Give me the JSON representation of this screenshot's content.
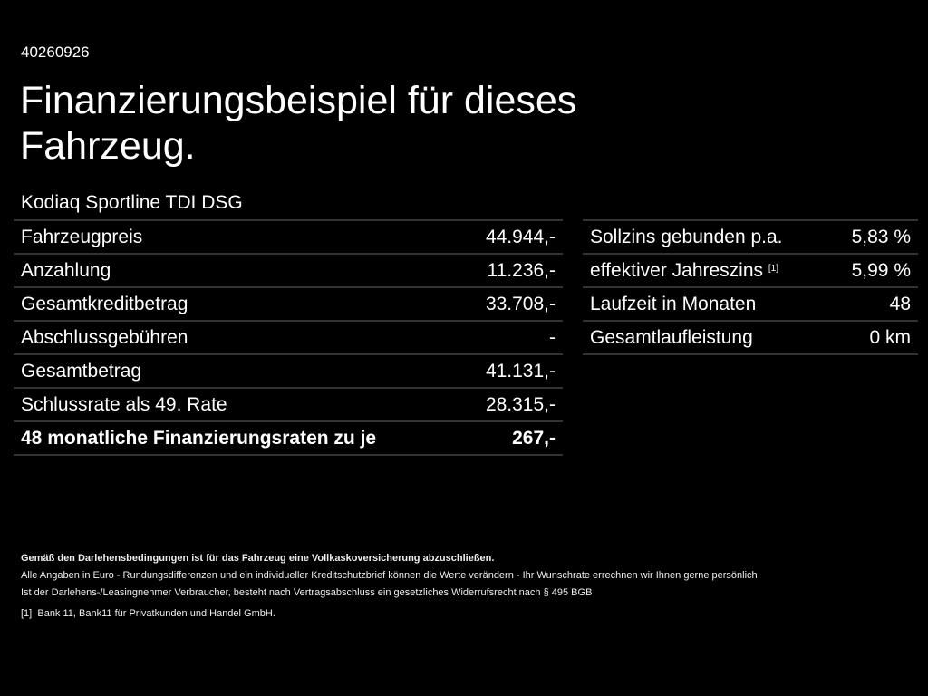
{
  "offer_id": "40260926",
  "title": "Finanzierungsbeispiel für dieses Fahrzeug.",
  "model": "Kodiaq Sportline TDI DSG",
  "left_rows": [
    {
      "label": "Fahrzeugpreis",
      "value": "44.944,-"
    },
    {
      "label": "Anzahlung",
      "value": "11.236,-"
    },
    {
      "label": "Gesamtkreditbetrag",
      "value": "33.708,-"
    },
    {
      "label": "Abschlussgebühren",
      "value": "-"
    },
    {
      "label": "Gesamtbetrag",
      "value": "41.131,-"
    },
    {
      "label": "Schlussrate als 49. Rate",
      "value": "28.315,-"
    },
    {
      "label": "48 monatliche Finanzierungsraten zu je",
      "value": "267,-"
    }
  ],
  "right_rows": [
    {
      "label": "Sollzins gebunden p.a.",
      "value": "5,83 %"
    },
    {
      "label": "effektiver Jahreszins",
      "sup": "[1]",
      "value": "5,99 %"
    },
    {
      "label": "Laufzeit in Monaten",
      "value": "48"
    },
    {
      "label": "Gesamtlaufleistung",
      "value": "0 km"
    }
  ],
  "notes": {
    "insurance": "Gemäß den Darlehensbedingungen ist für das Fahrzeug eine Vollkaskoversicherung abzuschließen.",
    "euro": "Alle Angaben in Euro - Rundungsdifferenzen und ein individueller Kreditschutzbrief können die Werte verändern - Ihr Wunschrate errechnen wir Ihnen gerne persönlich",
    "withdrawal": "Ist der Darlehens-/Leasingnehmer Verbraucher, besteht nach Vertragsabschluss ein gesetzliches Widerrufsrecht nach § 495 BGB",
    "footnote_mark": "[1]",
    "footnote": "Bank 11, Bank11 für Privatkunden und Handel GmbH."
  }
}
